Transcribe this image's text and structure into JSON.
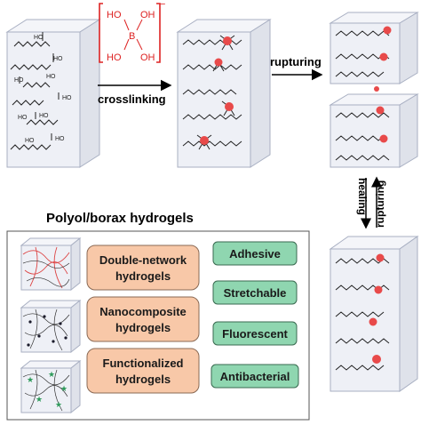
{
  "borax": {
    "groups": [
      "HO",
      "OH",
      "B",
      "HO",
      "OH"
    ],
    "charge": "−"
  },
  "arrows": {
    "crosslinking": "crosslinking",
    "rupturing": "rupturing",
    "healing": "healing",
    "rupturing_vertical": "rupturing"
  },
  "panel": {
    "title": "Polyol/borax hydrogels",
    "types": [
      {
        "line1": "Double-network",
        "line2": "hydrogels"
      },
      {
        "line1": "Nanocomposite",
        "line2": "hydrogels"
      },
      {
        "line1": "Functionalized",
        "line2": "hydrogels"
      }
    ],
    "properties": [
      "Adhesive",
      "Stretchable",
      "Fluorescent",
      "Antibacterial"
    ]
  },
  "chain_label": "HO",
  "colors": {
    "crosslink_node": "#e84a4a",
    "cube_face": "#eef0f6",
    "cube_edge": "#a8afc2",
    "orange_box": "#f8c8a8",
    "green_box": "#8fd6b0"
  }
}
